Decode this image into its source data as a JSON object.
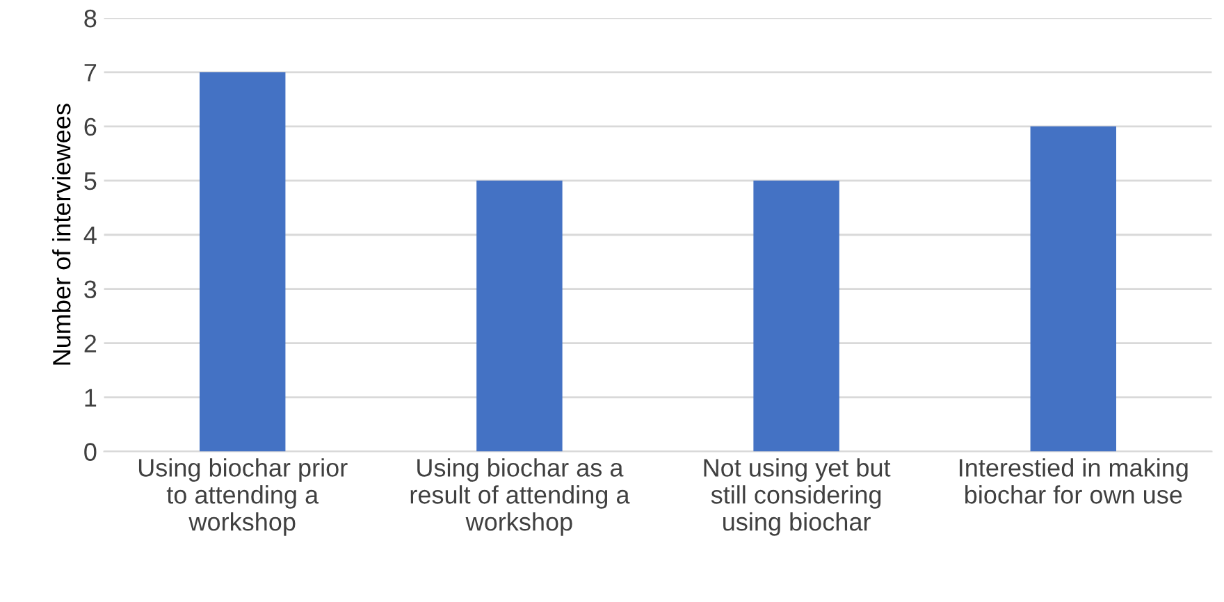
{
  "chart_data": {
    "type": "bar",
    "ylabel": "Number of interviewees",
    "categories": [
      "Using biochar prior\nto attending a\nworkshop",
      "Using biochar as a\nresult of attending a\nworkshop",
      "Not using yet but\nstill considering\nusing biochar",
      "Interestied in making\nbiochar for own use"
    ],
    "values": [
      7,
      5,
      5,
      6
    ],
    "color": "#4472c4",
    "ylim": [
      0,
      8
    ],
    "yticks": [
      0,
      1,
      2,
      3,
      4,
      5,
      6,
      7,
      8
    ],
    "grid": "y"
  }
}
